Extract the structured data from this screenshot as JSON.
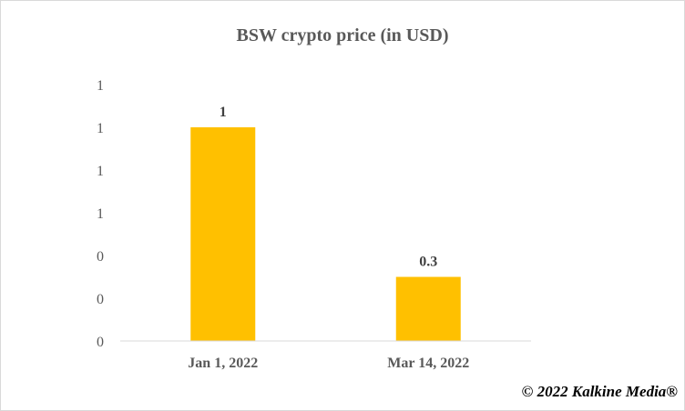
{
  "chart_data": {
    "type": "bar",
    "title": "BSW crypto price (in USD)",
    "categories": [
      "Jan 1, 2022",
      "Mar 14, 2022"
    ],
    "values": [
      1,
      0.3
    ],
    "data_labels": [
      "1",
      "0.3"
    ],
    "y_tick_labels": [
      "0",
      "0",
      "0",
      "1",
      "1",
      "1",
      "1"
    ],
    "ylim": [
      0,
      1.2
    ],
    "xlabel": "",
    "ylabel": "",
    "grid": false,
    "legend": "none",
    "bar_color": "#FFC000"
  },
  "copyright": "© 2022 Kalkine Media®"
}
